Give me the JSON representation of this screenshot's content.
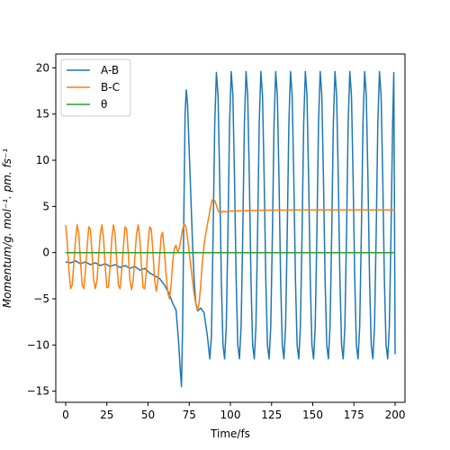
{
  "chart_data": {
    "type": "line",
    "xlabel": "Time/fs",
    "ylabel": "Momentum/g. mol⁻¹. pm. fs⁻¹",
    "xlim": [
      -6,
      206
    ],
    "ylim": [
      -16.2,
      21.5
    ],
    "xticks": [
      0,
      25,
      50,
      75,
      100,
      125,
      150,
      175,
      200
    ],
    "yticks": [
      -15,
      -10,
      -5,
      0,
      5,
      10,
      15,
      20
    ],
    "legend_position": "top-left",
    "grid": false,
    "series": [
      {
        "name": "A-B",
        "color": "#1f77b4",
        "points": [
          [
            0,
            -1
          ],
          [
            3,
            -1.1
          ],
          [
            6,
            -0.9
          ],
          [
            9,
            -1.2
          ],
          [
            12,
            -1
          ],
          [
            15,
            -1.3
          ],
          [
            18,
            -1.1
          ],
          [
            21,
            -1.4
          ],
          [
            24,
            -1.2
          ],
          [
            27,
            -1.5
          ],
          [
            30,
            -1.3
          ],
          [
            33,
            -1.6
          ],
          [
            36,
            -1.4
          ],
          [
            39,
            -1.7
          ],
          [
            42,
            -1.5
          ],
          [
            45,
            -1.9
          ],
          [
            48,
            -1.7
          ],
          [
            51,
            -2.2
          ],
          [
            54,
            -2.5
          ],
          [
            57,
            -2.8
          ],
          [
            60,
            -3.5
          ],
          [
            63,
            -4.5
          ],
          [
            65,
            -5.5
          ],
          [
            67,
            -6.2
          ],
          [
            68.5,
            -9.5
          ],
          [
            69.5,
            -12.5
          ],
          [
            70.3,
            -14.5
          ],
          [
            71,
            -8
          ],
          [
            71.8,
            5
          ],
          [
            72.5,
            15
          ],
          [
            73.2,
            17.6
          ],
          [
            74,
            16
          ],
          [
            75,
            11
          ],
          [
            76,
            6
          ],
          [
            77,
            1
          ],
          [
            78,
            -3
          ],
          [
            79,
            -5.5
          ],
          [
            80,
            -6.3
          ],
          [
            82,
            -6
          ],
          [
            84,
            -6.5
          ],
          [
            86,
            -9
          ],
          [
            87.5,
            -11.5
          ],
          [
            88.5,
            -9
          ],
          [
            89.5,
            2
          ],
          [
            90.5,
            14
          ],
          [
            91.5,
            19.5
          ],
          [
            92.5,
            17
          ],
          [
            93.5,
            8
          ],
          [
            94.5,
            -3
          ],
          [
            95.5,
            -10
          ],
          [
            96.5,
            -11.5
          ],
          [
            97.5,
            -8
          ],
          [
            98.5,
            2
          ],
          [
            99.5,
            14
          ],
          [
            100.5,
            19.6
          ],
          [
            101.5,
            17
          ],
          [
            102.5,
            8
          ],
          [
            103.5,
            -3
          ],
          [
            104.5,
            -10
          ],
          [
            105.5,
            -11.5
          ],
          [
            106.5,
            -8
          ],
          [
            107.5,
            2
          ],
          [
            108.5,
            14
          ],
          [
            109.5,
            19.6
          ],
          [
            110.5,
            17
          ],
          [
            111.5,
            8
          ],
          [
            112.5,
            -3
          ],
          [
            113.5,
            -10
          ],
          [
            114.5,
            -11.5
          ],
          [
            115.5,
            -8
          ],
          [
            116.5,
            2
          ],
          [
            117.5,
            14
          ],
          [
            118.5,
            19.6
          ],
          [
            119.5,
            17
          ],
          [
            120.5,
            8
          ],
          [
            121.5,
            -3
          ],
          [
            122.5,
            -10
          ],
          [
            123.5,
            -11.5
          ],
          [
            124.5,
            -8
          ],
          [
            125.5,
            2
          ],
          [
            126.5,
            14
          ],
          [
            127.5,
            19.6
          ],
          [
            128.5,
            17
          ],
          [
            129.5,
            8
          ],
          [
            130.5,
            -3
          ],
          [
            131.5,
            -10
          ],
          [
            132.5,
            -11.5
          ],
          [
            133.5,
            -8
          ],
          [
            134.5,
            2
          ],
          [
            135.5,
            14
          ],
          [
            136.5,
            19.6
          ],
          [
            137.5,
            17
          ],
          [
            138.5,
            8
          ],
          [
            139.5,
            -3
          ],
          [
            140.5,
            -10
          ],
          [
            141.5,
            -11.5
          ],
          [
            142.5,
            -8
          ],
          [
            143.5,
            2
          ],
          [
            144.5,
            14
          ],
          [
            145.5,
            19.6
          ],
          [
            146.5,
            17
          ],
          [
            147.5,
            8
          ],
          [
            148.5,
            -3
          ],
          [
            149.5,
            -10
          ],
          [
            150.5,
            -11.5
          ],
          [
            151.5,
            -8
          ],
          [
            152.5,
            2
          ],
          [
            153.5,
            14
          ],
          [
            154.5,
            19.6
          ],
          [
            155.5,
            17
          ],
          [
            156.5,
            8
          ],
          [
            157.5,
            -3
          ],
          [
            158.5,
            -10
          ],
          [
            159.5,
            -11.5
          ],
          [
            160.5,
            -8
          ],
          [
            161.5,
            2
          ],
          [
            162.5,
            14
          ],
          [
            163.5,
            19.6
          ],
          [
            164.5,
            17
          ],
          [
            165.5,
            8
          ],
          [
            166.5,
            -3
          ],
          [
            167.5,
            -10
          ],
          [
            168.5,
            -11.5
          ],
          [
            169.5,
            -8
          ],
          [
            170.5,
            2
          ],
          [
            171.5,
            14
          ],
          [
            172.5,
            19.6
          ],
          [
            173.5,
            17
          ],
          [
            174.5,
            8
          ],
          [
            175.5,
            -3
          ],
          [
            176.5,
            -10
          ],
          [
            177.5,
            -11.5
          ],
          [
            178.5,
            -8
          ],
          [
            179.5,
            2
          ],
          [
            180.5,
            14
          ],
          [
            181.5,
            19.6
          ],
          [
            182.5,
            17
          ],
          [
            183.5,
            8
          ],
          [
            184.5,
            -3
          ],
          [
            185.5,
            -10
          ],
          [
            186.5,
            -11.5
          ],
          [
            187.5,
            -8
          ],
          [
            188.5,
            2
          ],
          [
            189.5,
            14
          ],
          [
            190.5,
            19.6
          ],
          [
            191.5,
            17
          ],
          [
            192.5,
            8
          ],
          [
            193.5,
            -3
          ],
          [
            194.5,
            -10
          ],
          [
            195.5,
            -11.5
          ],
          [
            196.5,
            -8
          ],
          [
            197.5,
            2
          ],
          [
            198.5,
            14
          ],
          [
            199.2,
            19.5
          ],
          [
            199.6,
            5
          ],
          [
            200,
            -11
          ]
        ]
      },
      {
        "name": "B-C",
        "color": "#ff7f0e",
        "points": [
          [
            0,
            3
          ],
          [
            1,
            1
          ],
          [
            2,
            -2
          ],
          [
            3,
            -3.9
          ],
          [
            4,
            -3.5
          ],
          [
            5,
            -1
          ],
          [
            6,
            1.5
          ],
          [
            7,
            3
          ],
          [
            8,
            2
          ],
          [
            9,
            -1
          ],
          [
            10,
            -3.5
          ],
          [
            11,
            -3.9
          ],
          [
            12,
            -2
          ],
          [
            13,
            0.5
          ],
          [
            14,
            2.8
          ],
          [
            15,
            2.5
          ],
          [
            16,
            0
          ],
          [
            17,
            -3
          ],
          [
            18,
            -3.9
          ],
          [
            19,
            -3
          ],
          [
            20,
            -0.5
          ],
          [
            21,
            2
          ],
          [
            22,
            3
          ],
          [
            23,
            1.5
          ],
          [
            24,
            -1.5
          ],
          [
            25,
            -3.8
          ],
          [
            26,
            -3.7
          ],
          [
            27,
            -1.5
          ],
          [
            28,
            1.5
          ],
          [
            29,
            3
          ],
          [
            30,
            2
          ],
          [
            31,
            -1
          ],
          [
            32,
            -3.5
          ],
          [
            33,
            -3.9
          ],
          [
            34,
            -2
          ],
          [
            35,
            0.5
          ],
          [
            36,
            2.8
          ],
          [
            37,
            2.5
          ],
          [
            38,
            0
          ],
          [
            39,
            -3
          ],
          [
            40,
            -4
          ],
          [
            41,
            -3
          ],
          [
            42,
            -0.5
          ],
          [
            43,
            2
          ],
          [
            44,
            3
          ],
          [
            45,
            1.5
          ],
          [
            46,
            -1.5
          ],
          [
            47,
            -3.8
          ],
          [
            48,
            -3.9
          ],
          [
            49,
            -2
          ],
          [
            50,
            1
          ],
          [
            51,
            2.8
          ],
          [
            52,
            2.5
          ],
          [
            53,
            0
          ],
          [
            54,
            -3
          ],
          [
            55,
            -4.2
          ],
          [
            56,
            -3
          ],
          [
            57,
            -0.5
          ],
          [
            58,
            1.8
          ],
          [
            58.8,
            2.2
          ],
          [
            60,
            0
          ],
          [
            61,
            -2.5
          ],
          [
            62,
            -4.3
          ],
          [
            63,
            -5
          ],
          [
            64,
            -3.5
          ],
          [
            65,
            -1
          ],
          [
            66,
            0.5
          ],
          [
            67,
            0.8
          ],
          [
            68,
            0
          ],
          [
            69,
            0.5
          ],
          [
            70,
            1.5
          ],
          [
            71,
            2.5
          ],
          [
            72,
            3.1
          ],
          [
            73,
            2.8
          ],
          [
            74,
            1.5
          ],
          [
            75,
            0
          ],
          [
            76,
            -1.5
          ],
          [
            77,
            -3
          ],
          [
            78,
            -4.5
          ],
          [
            79,
            -5.5
          ],
          [
            80,
            -6.2
          ],
          [
            81,
            -5.5
          ],
          [
            82,
            -3.5
          ],
          [
            83,
            -1
          ],
          [
            84,
            0.8
          ],
          [
            85,
            2
          ],
          [
            86,
            3
          ],
          [
            87,
            4
          ],
          [
            88,
            5
          ],
          [
            89,
            5.7
          ],
          [
            90,
            5.8
          ],
          [
            91,
            5.4
          ],
          [
            92,
            4.8
          ],
          [
            93,
            4.4
          ],
          [
            94,
            4.3
          ],
          [
            95,
            4.4
          ],
          [
            96,
            4.5
          ],
          [
            97,
            4.4
          ],
          [
            100,
            4.5
          ],
          [
            110,
            4.55
          ],
          [
            120,
            4.6
          ],
          [
            130,
            4.6
          ],
          [
            140,
            4.62
          ],
          [
            150,
            4.62
          ],
          [
            160,
            4.62
          ],
          [
            170,
            4.62
          ],
          [
            180,
            4.62
          ],
          [
            190,
            4.62
          ],
          [
            200,
            4.62
          ]
        ]
      },
      {
        "name": "θ",
        "color": "#2ca02c",
        "points": [
          [
            0,
            0
          ],
          [
            200,
            0
          ]
        ]
      }
    ]
  }
}
